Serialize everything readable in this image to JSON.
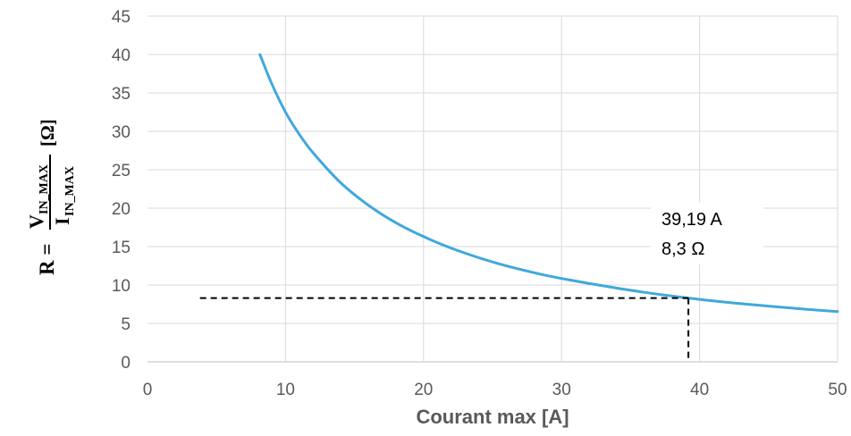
{
  "chart_data": {
    "type": "line",
    "title": "",
    "xlabel": "Courant max [A]",
    "ylabel": {
      "prefix": "R = ",
      "numerator": "V",
      "numerator_sub": "IN_MAX",
      "denominator": "I",
      "denominator_sub": "IN_MAX",
      "unit": "[Ω]"
    },
    "xlim": [
      0,
      50
    ],
    "ylim": [
      0,
      45
    ],
    "x_ticks": [
      "0",
      "10",
      "20",
      "30",
      "40",
      "50"
    ],
    "y_ticks": [
      "0",
      "5",
      "10",
      "15",
      "20",
      "25",
      "30",
      "35",
      "40",
      "45"
    ],
    "grid": true,
    "legend": "none",
    "series": [
      {
        "color": "#41a8dc",
        "x": [
          8.15,
          9,
          10,
          11,
          12,
          14,
          16,
          18,
          20,
          22,
          25,
          28,
          30,
          33,
          36,
          39.19,
          42,
          45,
          48,
          50
        ],
        "y": [
          40.0,
          36.2,
          32.5,
          29.6,
          27.2,
          23.3,
          20.4,
          18.1,
          16.3,
          14.8,
          13.0,
          11.6,
          10.85,
          9.9,
          9.05,
          8.3,
          7.75,
          7.25,
          6.8,
          6.55
        ]
      }
    ],
    "marker": {
      "x": 39.19,
      "y": 8.3,
      "x_line_start": 3.8,
      "label_current": "39,19 A",
      "label_resistance": "8,3 Ω"
    }
  }
}
